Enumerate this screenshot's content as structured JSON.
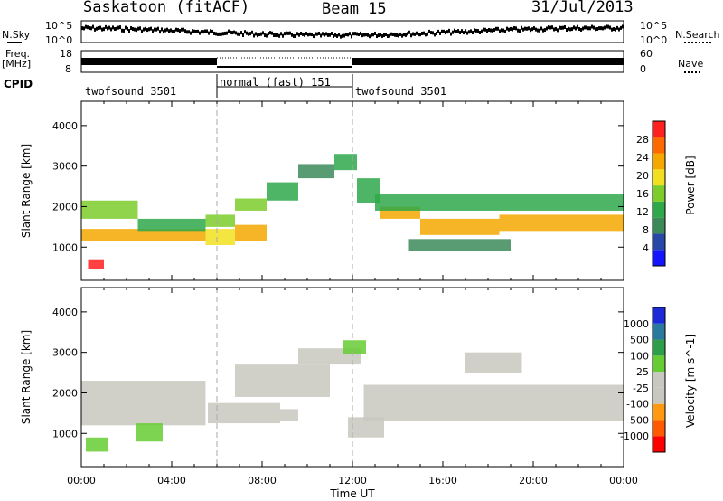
{
  "header": {
    "station": "Saskatoon (fitACF)",
    "beam": "Beam 15",
    "date": "31/Jul/2013"
  },
  "status_panels": {
    "nsky": {
      "label": "N.Sky",
      "left_ticks": [
        "10^5",
        "10^0"
      ],
      "right_label": "N.Search",
      "right_ticks": [
        "10^5",
        "10^0"
      ]
    },
    "freq": {
      "label": "Freq.",
      "unit": "[MHz]",
      "left_ticks": [
        "18",
        "8"
      ],
      "right_label": "Nave",
      "right_ticks": [
        "60",
        "0"
      ]
    },
    "cpid": {
      "label": "CPID",
      "segments": [
        {
          "name": "twofsound 3501",
          "start_h": 0,
          "end_h": 6
        },
        {
          "name": "normal (fast) 151",
          "start_h": 6,
          "end_h": 12
        },
        {
          "name": "twofsound 3501",
          "start_h": 12,
          "end_h": 24
        }
      ]
    }
  },
  "colors": {
    "power_scale": [
      "#1414ff",
      "#2848a8",
      "#3c8a5a",
      "#2ea84a",
      "#7ccc2c",
      "#f2e020",
      "#f5a800",
      "#ff6a00",
      "#ff2020"
    ],
    "velocity_scale": [
      "#ff0000",
      "#ff5a00",
      "#ff9a10",
      "#c8c8c0",
      "#c8c8c0",
      "#66cc33",
      "#2e9e4a",
      "#2a7aa0",
      "#1c2ad8"
    ]
  },
  "chart_data": [
    {
      "type": "heatmap",
      "panel": "power",
      "xlabel": "",
      "ylabel": "Slant Range [km]",
      "xlim": [
        0,
        24
      ],
      "ylim": [
        180,
        4600
      ],
      "yticks": [
        "1000",
        "2000",
        "3000",
        "4000"
      ],
      "colorbar": {
        "label": "Power [dB]",
        "ticks": [
          "4",
          "8",
          "12",
          "16",
          "20",
          "24",
          "28"
        ],
        "range": [
          0,
          30
        ]
      },
      "bands": [
        {
          "t0": 0.0,
          "t1": 5.5,
          "r0": 1150,
          "r1": 1450,
          "level": 20
        },
        {
          "t0": 0.0,
          "t1": 2.5,
          "r0": 1700,
          "r1": 2150,
          "level": 14
        },
        {
          "t0": 2.5,
          "t1": 5.5,
          "r0": 1400,
          "r1": 1700,
          "level": 12
        },
        {
          "t0": 5.5,
          "t1": 6.8,
          "r0": 1500,
          "r1": 1800,
          "level": 16
        },
        {
          "t0": 5.5,
          "t1": 6.8,
          "r0": 1050,
          "r1": 1450,
          "level": 18
        },
        {
          "t0": 6.8,
          "t1": 8.2,
          "r0": 1150,
          "r1": 1550,
          "level": 20
        },
        {
          "t0": 6.8,
          "t1": 8.2,
          "r0": 1900,
          "r1": 2200,
          "level": 16
        },
        {
          "t0": 8.2,
          "t1": 9.6,
          "r0": 2150,
          "r1": 2600,
          "level": 10
        },
        {
          "t0": 9.6,
          "t1": 11.2,
          "r0": 2700,
          "r1": 3050,
          "level": 8
        },
        {
          "t0": 11.2,
          "t1": 12.2,
          "r0": 2900,
          "r1": 3300,
          "level": 12
        },
        {
          "t0": 12.2,
          "t1": 13.2,
          "r0": 2100,
          "r1": 2700,
          "level": 12
        },
        {
          "t0": 13.2,
          "t1": 15.0,
          "r0": 1700,
          "r1": 2000,
          "level": 22
        },
        {
          "t0": 15.0,
          "t1": 18.5,
          "r0": 1300,
          "r1": 1700,
          "level": 22
        },
        {
          "t0": 18.5,
          "t1": 24.0,
          "r0": 1400,
          "r1": 1800,
          "level": 20
        },
        {
          "t0": 13.0,
          "t1": 24.0,
          "r0": 1900,
          "r1": 2300,
          "level": 10
        },
        {
          "t0": 14.5,
          "t1": 19.0,
          "r0": 900,
          "r1": 1200,
          "level": 8
        },
        {
          "t0": 0.3,
          "t1": 1.0,
          "r0": 450,
          "r1": 700,
          "level": 28
        }
      ]
    },
    {
      "type": "heatmap",
      "panel": "velocity",
      "xlabel": "Time UT",
      "ylabel": "Slant Range [km]",
      "xlim": [
        0,
        24
      ],
      "ylim": [
        180,
        4600
      ],
      "xticks": [
        "00:00",
        "04:00",
        "08:00",
        "12:00",
        "16:00",
        "20:00",
        "00:00"
      ],
      "yticks": [
        "1000",
        "2000",
        "3000",
        "4000"
      ],
      "colorbar": {
        "label": "Velocity [m s^-1]",
        "ticks": [
          "-1000",
          "-500",
          "-100",
          "-25",
          "25",
          "100",
          "500",
          "1000"
        ],
        "range": [
          -1250,
          1250
        ]
      },
      "bands": [
        {
          "t0": 0.0,
          "t1": 5.5,
          "r0": 1200,
          "r1": 2300,
          "level": 0
        },
        {
          "t0": 0.2,
          "t1": 1.2,
          "r0": 550,
          "r1": 900,
          "level": 200
        },
        {
          "t0": 2.4,
          "t1": 3.6,
          "r0": 800,
          "r1": 1250,
          "level": 400
        },
        {
          "t0": 5.6,
          "t1": 8.8,
          "r0": 1250,
          "r1": 1750,
          "level": -250
        },
        {
          "t0": 8.8,
          "t1": 9.6,
          "r0": 1300,
          "r1": 1600,
          "level": -120
        },
        {
          "t0": 6.8,
          "t1": 11.0,
          "r0": 1900,
          "r1": 2700,
          "level": 0
        },
        {
          "t0": 9.6,
          "t1": 12.4,
          "r0": 2700,
          "r1": 3100,
          "level": 0
        },
        {
          "t0": 11.6,
          "t1": 12.6,
          "r0": 2950,
          "r1": 3300,
          "level": 150
        },
        {
          "t0": 11.8,
          "t1": 13.4,
          "r0": 900,
          "r1": 1400,
          "level": -250
        },
        {
          "t0": 12.5,
          "t1": 24.0,
          "r0": 1300,
          "r1": 2200,
          "level": 0
        },
        {
          "t0": 17.0,
          "t1": 19.5,
          "r0": 2500,
          "r1": 3000,
          "level": 0
        }
      ]
    }
  ]
}
